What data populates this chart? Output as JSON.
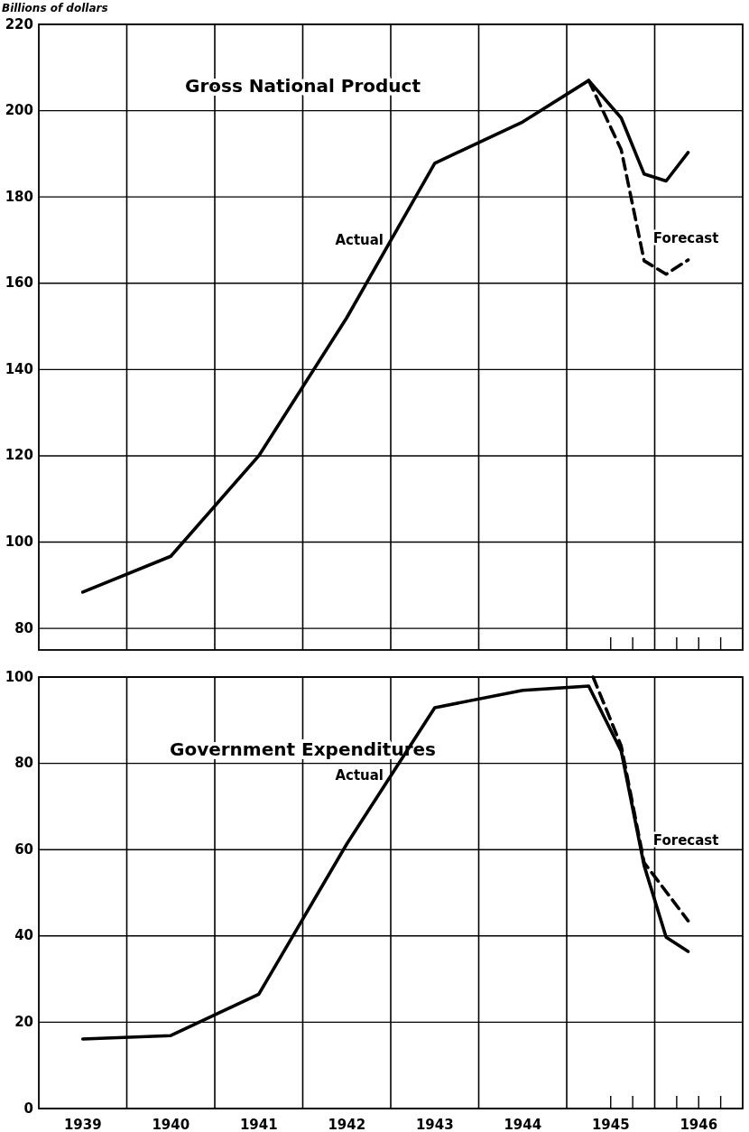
{
  "chart_data": [
    {
      "type": "line",
      "title": "Gross National Product",
      "ylabel": "Billions of dollars",
      "xlim": [
        1939,
        1947
      ],
      "ylim": [
        75,
        220
      ],
      "yticks": [
        80,
        100,
        120,
        140,
        160,
        180,
        200,
        220
      ],
      "xticks": [
        {
          "value": 1940,
          "label": null
        },
        {
          "value": 1941,
          "label": null
        },
        {
          "value": 1942,
          "label": null
        },
        {
          "value": 1943,
          "label": null
        },
        {
          "value": 1944,
          "label": null
        },
        {
          "value": 1945,
          "label": null
        },
        {
          "value": 1946,
          "label": null
        },
        {
          "value": 1945.5,
          "label": null
        },
        {
          "value": 1945.75,
          "label": null
        },
        {
          "value": 1946.25,
          "label": null
        },
        {
          "value": 1946.5,
          "label": null
        },
        {
          "value": 1946.75,
          "label": null
        }
      ],
      "tick_labels": "y",
      "grid": true,
      "marker": "none",
      "series": [
        {
          "name": "Actual",
          "color": "#000000",
          "line_style": "solid",
          "x": [
            1939.5,
            1940.5,
            1941.5,
            1942.5,
            1943.5,
            1944.5,
            1945.25,
            1945.62,
            1945.88,
            1946.13,
            1946.38
          ],
          "values": [
            88.4,
            96.7,
            120,
            152,
            187.8,
            197.4,
            207,
            198.3,
            185.3,
            183.7,
            190.3
          ]
        },
        {
          "name": "Forecast",
          "color": "#000000",
          "line_style": "dashed",
          "x": [
            1945.25,
            1945.62,
            1945.88,
            1946.13,
            1946.38
          ],
          "values": [
            207,
            190.9,
            165.2,
            162.1,
            165.4
          ]
        }
      ]
    },
    {
      "type": "line",
      "title": "Government Expenditures",
      "xlim": [
        1939,
        1947
      ],
      "ylim": [
        0,
        100
      ],
      "yticks": [
        0,
        20,
        40,
        60,
        80,
        100
      ],
      "xticks": [
        {
          "value": 1940,
          "label": null
        },
        {
          "value": 1941,
          "label": null
        },
        {
          "value": 1942,
          "label": null
        },
        {
          "value": 1943,
          "label": null
        },
        {
          "value": 1944,
          "label": null
        },
        {
          "value": 1945,
          "label": null
        },
        {
          "value": 1946,
          "label": null
        },
        {
          "value": 1945.5,
          "label": null
        },
        {
          "value": 1945.75,
          "label": null
        },
        {
          "value": 1946.25,
          "label": null
        },
        {
          "value": 1946.5,
          "label": null
        },
        {
          "value": 1946.75,
          "label": null
        },
        {
          "value": 1939.5,
          "label": "1939"
        },
        {
          "value": 1940.5,
          "label": "1940"
        },
        {
          "value": 1941.5,
          "label": "1941"
        },
        {
          "value": 1942.5,
          "label": "1942"
        },
        {
          "value": 1943.5,
          "label": "1943"
        },
        {
          "value": 1944.5,
          "label": "1944"
        },
        {
          "value": 1945.5,
          "label": "1945"
        },
        {
          "value": 1946.5,
          "label": "1946"
        }
      ],
      "grid": true,
      "marker": "none",
      "series": [
        {
          "name": "Actual",
          "color": "#000000",
          "line_style": "solid",
          "x": [
            1939.5,
            1940.5,
            1941.5,
            1942.5,
            1943.5,
            1944.5,
            1945.25,
            1945.62,
            1945.88,
            1946.13,
            1946.38
          ],
          "values": [
            16.1,
            16.9,
            26.5,
            61.3,
            92.9,
            96.9,
            97.9,
            82.8,
            56.3,
            39.7,
            36.4
          ]
        },
        {
          "name": "Forecast",
          "color": "#000000",
          "line_style": "dashed",
          "x": [
            1945.3,
            1945.62,
            1945.88,
            1946.38
          ],
          "values": [
            100,
            84,
            57,
            43.5
          ]
        }
      ]
    }
  ]
}
